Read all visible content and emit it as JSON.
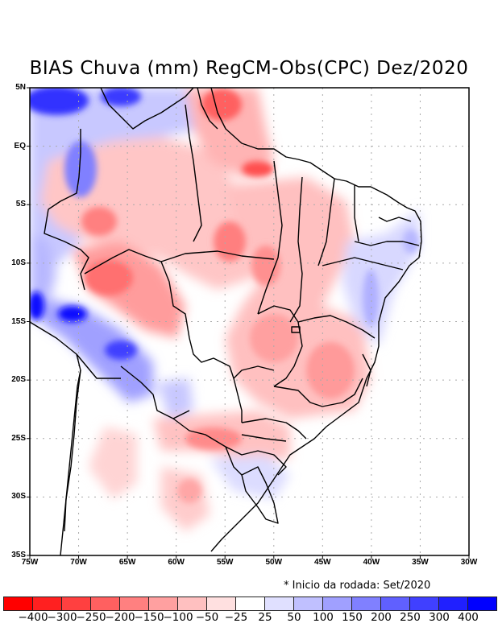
{
  "title": "BIAS Chuva (mm) RegCM-Obs(CPC) Dez/2020",
  "note": "* Inicio da rodada: Set/2020",
  "map": {
    "projection": "lat-lon",
    "lon_range_deg": [
      -75,
      -30
    ],
    "lat_range_deg": [
      -35,
      5
    ],
    "grid": "dotted",
    "lon_ticks": [
      {
        "value": -75,
        "label": "75W"
      },
      {
        "value": -70,
        "label": "70W"
      },
      {
        "value": -65,
        "label": "65W"
      },
      {
        "value": -60,
        "label": "60W"
      },
      {
        "value": -55,
        "label": "55W"
      },
      {
        "value": -50,
        "label": "50W"
      },
      {
        "value": -45,
        "label": "45W"
      },
      {
        "value": -40,
        "label": "40W"
      },
      {
        "value": -35,
        "label": "35W"
      },
      {
        "value": -30,
        "label": "30W"
      }
    ],
    "lat_ticks": [
      {
        "value": 5,
        "label": "5N"
      },
      {
        "value": 0,
        "label": "EQ"
      },
      {
        "value": -5,
        "label": "5S"
      },
      {
        "value": -10,
        "label": "10S"
      },
      {
        "value": -15,
        "label": "15S"
      },
      {
        "value": -20,
        "label": "20S"
      },
      {
        "value": -25,
        "label": "25S"
      },
      {
        "value": -30,
        "label": "30S"
      },
      {
        "value": -35,
        "label": "35S"
      }
    ],
    "features": [
      {
        "name": "northwest-amazon-wet-bias",
        "lon": -72,
        "lat": 3.5,
        "class": 300
      },
      {
        "name": "roraima-wet-bias",
        "lon": -66.5,
        "lat": 4,
        "class": 250
      },
      {
        "name": "west-amazon-wet-bias",
        "lon": -71,
        "lat": -1.5,
        "class": 150
      },
      {
        "name": "amapa-dry-bias",
        "lon": -54.5,
        "lat": 3.5,
        "class": -200
      },
      {
        "name": "marajo-dry-bias",
        "lon": -51.5,
        "lat": -1.5,
        "class": -200
      },
      {
        "name": "amazonas-dry-bias",
        "lon": -66.5,
        "lat": -6.5,
        "class": -200
      },
      {
        "name": "para-dry-bias",
        "lon": -55,
        "lat": -8,
        "class": -200
      },
      {
        "name": "rondonia-dry-bias",
        "lon": -66.5,
        "lat": -11,
        "class": -250
      },
      {
        "name": "peru-wet-bias",
        "lon": -74.5,
        "lat": -13.5,
        "class": 400
      },
      {
        "name": "bolivia-wet-bias-north",
        "lon": -70,
        "lat": -14.5,
        "class": 400
      },
      {
        "name": "bolivia-wet-bias-south",
        "lon": -64,
        "lat": -17.5,
        "class": 300
      },
      {
        "name": "chaco-wet-bias",
        "lon": -59,
        "lat": -21.5,
        "class": 100
      },
      {
        "name": "bahia-coast-wet-bias",
        "lon": -38,
        "lat": -13,
        "class": 100
      },
      {
        "name": "minas-dry-bias",
        "lon": -43,
        "lat": -20.5,
        "class": -150
      },
      {
        "name": "goias-dry-bias",
        "lon": -48,
        "lat": -16.5,
        "class": -150
      },
      {
        "name": "parana-dry-bias",
        "lon": -54.5,
        "lat": -25,
        "class": -200
      },
      {
        "name": "argentina-dry-bias",
        "lon": -56,
        "lat": -28.5,
        "class": -150
      },
      {
        "name": "uruguay-wet-bias",
        "lon": -50.5,
        "lat": -28.5,
        "class": 50
      }
    ]
  },
  "colorbar": {
    "colors": [
      "#ff0000",
      "#ff2020",
      "#ff4040",
      "#ff6060",
      "#ff8080",
      "#ffa0a0",
      "#ffc0c0",
      "#ffe0e0",
      "#ffffff",
      "#e0e0ff",
      "#c0c0ff",
      "#a0a0ff",
      "#8080ff",
      "#6060ff",
      "#4040ff",
      "#2020ff",
      "#0000ff"
    ],
    "labels": [
      "-400",
      "-300",
      "-250",
      "-200",
      "-150",
      "-100",
      "-50",
      "-25",
      "25",
      "50",
      "100",
      "150",
      "200",
      "250",
      "300",
      "400"
    ]
  }
}
